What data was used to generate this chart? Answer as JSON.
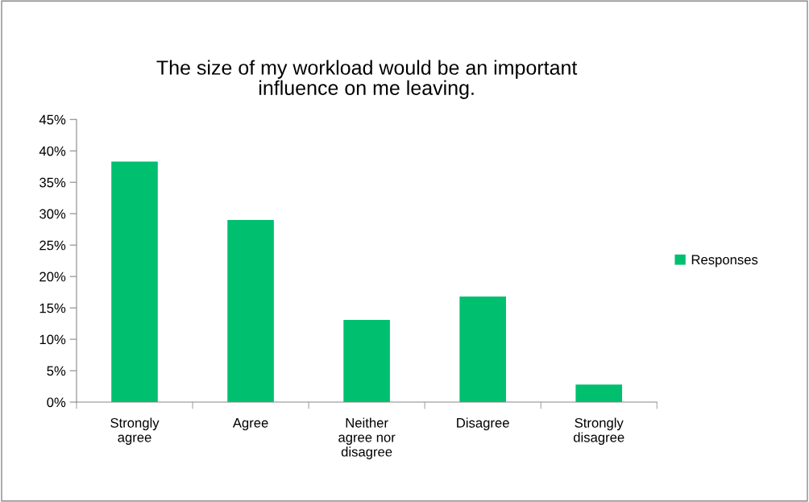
{
  "chart_data": {
    "type": "bar",
    "title": "The size of my workload would be an important\ninfluence on me leaving.",
    "categories": [
      "Strongly\nagree",
      "Agree",
      "Neither\nagree nor\ndisagree",
      "Disagree",
      "Strongly\ndisagree"
    ],
    "series": [
      {
        "name": "Responses",
        "color": "#00bf6f",
        "values": [
          38.3,
          29.0,
          13.1,
          16.8,
          2.8
        ]
      }
    ],
    "ylim": [
      0,
      45
    ],
    "yticks": [
      {
        "value": 0,
        "label": "0%"
      },
      {
        "value": 5,
        "label": "5%"
      },
      {
        "value": 10,
        "label": "10%"
      },
      {
        "value": 15,
        "label": "15%"
      },
      {
        "value": 20,
        "label": "20%"
      },
      {
        "value": 25,
        "label": "25%"
      },
      {
        "value": 30,
        "label": "30%"
      },
      {
        "value": 35,
        "label": "35%"
      },
      {
        "value": 40,
        "label": "40%"
      },
      {
        "value": 45,
        "label": "45%"
      }
    ],
    "grid": false,
    "legend": "right"
  }
}
